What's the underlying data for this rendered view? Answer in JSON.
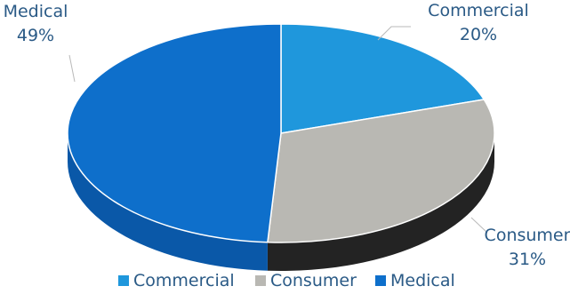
{
  "chart_data": {
    "type": "pie",
    "style": "3d",
    "legend_position": "bottom",
    "slices": [
      {
        "name": "Commercial",
        "value": 20,
        "label_value": "20%",
        "color": "#1f97dc",
        "side_color": "#167ab8"
      },
      {
        "name": "Consumer",
        "value": 31,
        "label_value": "31%",
        "color": "#b9b8b3",
        "side_color": "#232323"
      },
      {
        "name": "Medical",
        "value": 49,
        "label_value": "49%",
        "color": "#0e6fcb",
        "side_color": "#0a58a8"
      }
    ]
  }
}
